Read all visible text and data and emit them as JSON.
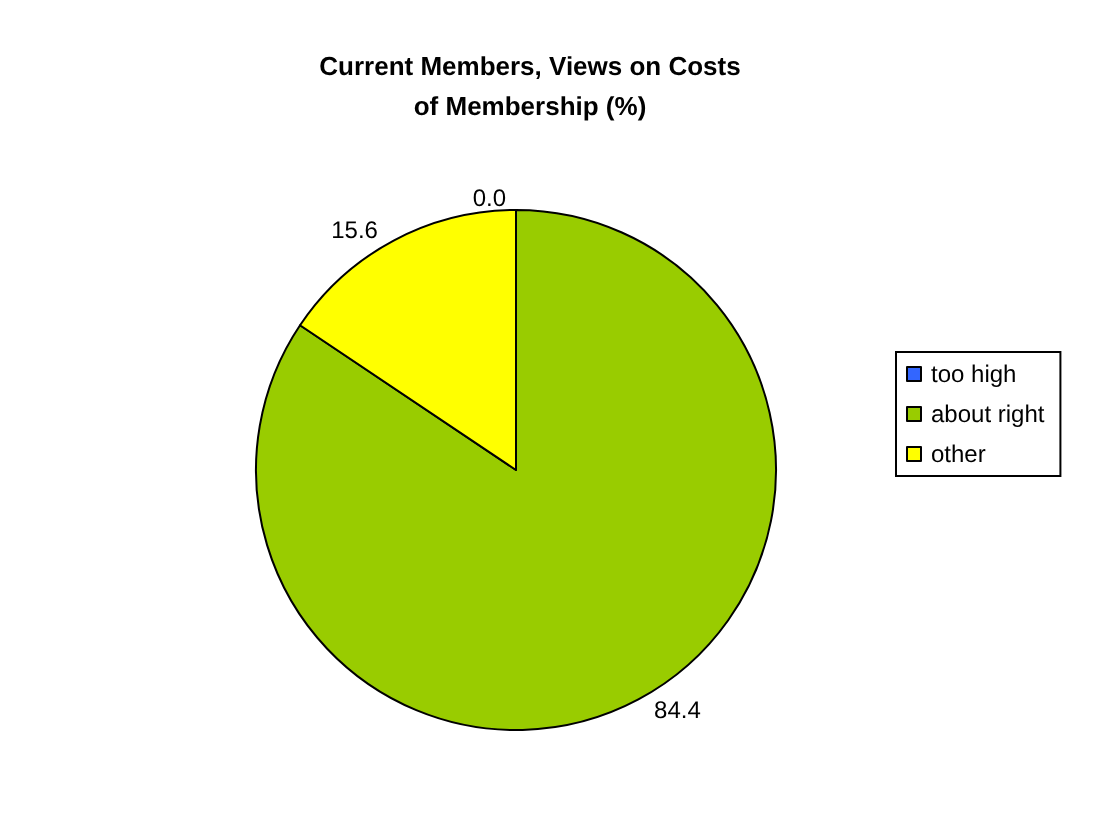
{
  "chart_data": {
    "type": "pie",
    "title": "Current Members, Views on Costs\nof Membership (%)",
    "categories": [
      "too high",
      "about right",
      "other"
    ],
    "values": [
      0,
      84.4,
      15.6
    ],
    "value_labels": [
      "0.0",
      "84.4",
      "15.6"
    ],
    "colors": [
      "#3366ff",
      "#99cc00",
      "#ffff00"
    ],
    "legend": "right"
  }
}
